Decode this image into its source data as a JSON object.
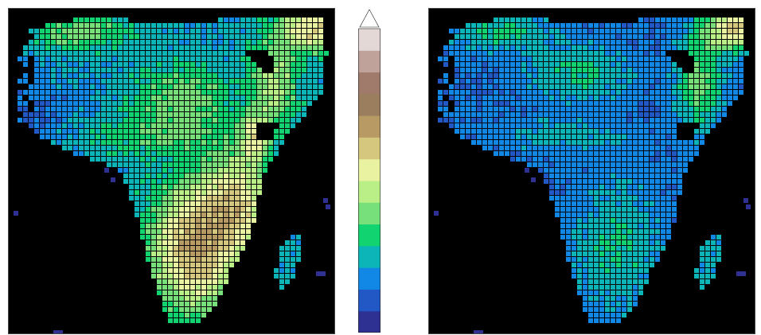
{
  "panels": [
    {
      "name": "left-map",
      "field": "higher-values"
    },
    {
      "name": "right-map",
      "field": "lower-values"
    }
  ],
  "colorbar": {
    "levels": 15,
    "extend": "max",
    "colors": [
      "#2e3192",
      "#2158c6",
      "#1188e6",
      "#0bb5b8",
      "#11d36f",
      "#78e07a",
      "#b9ef86",
      "#e8f2a0",
      "#d6c77e",
      "#b89b64",
      "#9b7e5e",
      "#a07a6a",
      "#bfa29a",
      "#e3d8d6"
    ],
    "arrow_color": "#ffffff"
  },
  "map_colors": {
    "background": "#000000",
    "grid_line": "#000000"
  }
}
